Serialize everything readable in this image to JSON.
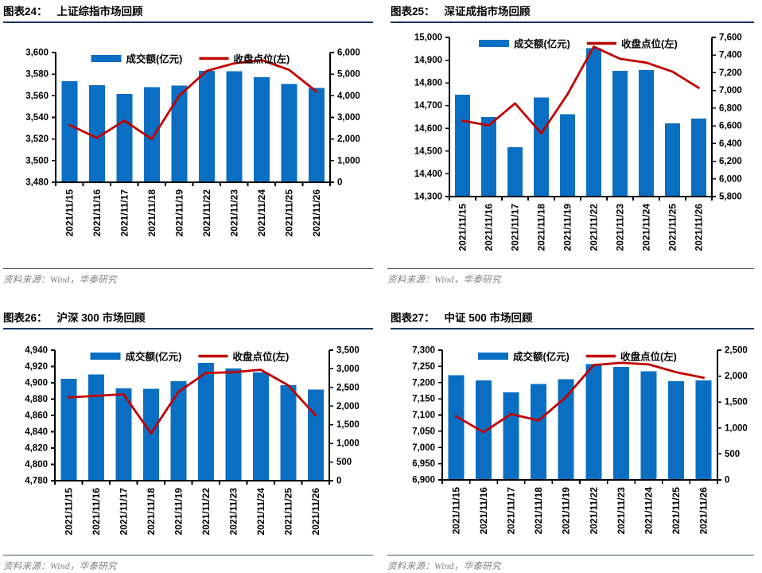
{
  "source_note": "资料来源：Wind，华泰研究",
  "colors": {
    "bar_blue": "#0A6FC2",
    "line_red": "#C00000",
    "header_rule": "#17375E",
    "footer_rule": "#44546A",
    "source_text": "#7F7F7F"
  },
  "chart_data": [
    {
      "type": "combo",
      "fig_label": "图表24：",
      "title": "上证综指市场回顾",
      "categories": [
        "2021/11/15",
        "2021/11/16",
        "2021/11/17",
        "2021/11/18",
        "2021/11/19",
        "2021/11/22",
        "2021/11/23",
        "2021/11/24",
        "2021/11/25",
        "2021/11/26"
      ],
      "series": [
        {
          "name": "成交额(亿元)",
          "type": "bar",
          "axis": "right",
          "color": "#0A6FC2",
          "values": [
            4670,
            4490,
            4080,
            4390,
            4470,
            5150,
            5130,
            4850,
            4540,
            4370
          ]
        },
        {
          "name": "收盘点位(左)",
          "type": "line",
          "axis": "left",
          "color": "#C00000",
          "values": [
            3533,
            3521,
            3537,
            3520,
            3560,
            3583,
            3590,
            3593,
            3584,
            3564
          ]
        }
      ],
      "left_axis": {
        "min": 3480,
        "max": 3600,
        "step": 20
      },
      "right_axis": {
        "min": 0,
        "max": 6000,
        "step": 1000
      },
      "legend_position": "top-center",
      "grid": false
    },
    {
      "type": "combo",
      "fig_label": "图表25：",
      "title": "深证成指市场回顾",
      "categories": [
        "2021/11/15",
        "2021/11/16",
        "2021/11/17",
        "2021/11/18",
        "2021/11/19",
        "2021/11/22",
        "2021/11/23",
        "2021/11/24",
        "2021/11/25",
        "2021/11/26"
      ],
      "series": [
        {
          "name": "成交额(亿元)",
          "type": "bar",
          "axis": "right",
          "color": "#0A6FC2",
          "values": [
            6950,
            6700,
            6360,
            6920,
            6730,
            7480,
            7220,
            7230,
            6630,
            6680
          ]
        },
        {
          "name": "收盘点位(左)",
          "type": "line",
          "axis": "left",
          "color": "#C00000",
          "values": [
            14634,
            14613,
            14710,
            14578,
            14750,
            14959,
            14906,
            14889,
            14849,
            14778
          ]
        }
      ],
      "left_axis": {
        "min": 14300,
        "max": 15000,
        "step": 100
      },
      "right_axis": {
        "min": 5800,
        "max": 7600,
        "step": 200
      },
      "legend_position": "top-center",
      "grid": false
    },
    {
      "type": "combo",
      "fig_label": "图表26：",
      "title": "沪深 300 市场回顾",
      "categories": [
        "2021/11/15",
        "2021/11/16",
        "2021/11/17",
        "2021/11/18",
        "2021/11/19",
        "2021/11/22",
        "2021/11/23",
        "2021/11/24",
        "2021/11/25",
        "2021/11/26"
      ],
      "series": [
        {
          "name": "成交额(亿元)",
          "type": "bar",
          "axis": "right",
          "color": "#0A6FC2",
          "values": [
            2730,
            2850,
            2480,
            2460,
            2670,
            3160,
            3010,
            2900,
            2560,
            2440
          ]
        },
        {
          "name": "收盘点位(左)",
          "type": "line",
          "axis": "left",
          "color": "#C00000",
          "values": [
            4882,
            4884,
            4886,
            4838,
            4889,
            4912,
            4913,
            4916,
            4897,
            4860
          ]
        }
      ],
      "left_axis": {
        "min": 4780,
        "max": 4940,
        "step": 20
      },
      "right_axis": {
        "min": 0,
        "max": 3500,
        "step": 500
      },
      "legend_position": "top-center",
      "grid": false
    },
    {
      "type": "combo",
      "fig_label": "图表27：",
      "title": "中证 500 市场回顾",
      "categories": [
        "2021/11/15",
        "2021/11/16",
        "2021/11/17",
        "2021/11/18",
        "2021/11/19",
        "2021/11/22",
        "2021/11/23",
        "2021/11/24",
        "2021/11/25",
        "2021/11/26"
      ],
      "series": [
        {
          "name": "成交额(亿元)",
          "type": "bar",
          "axis": "right",
          "color": "#0A6FC2",
          "values": [
            2020,
            1920,
            1690,
            1850,
            1940,
            2230,
            2180,
            2090,
            1900,
            1920
          ]
        },
        {
          "name": "收盘点位(左)",
          "type": "line",
          "axis": "left",
          "color": "#C00000",
          "values": [
            7096,
            7047,
            7103,
            7083,
            7156,
            7254,
            7261,
            7256,
            7232,
            7215
          ]
        }
      ],
      "left_axis": {
        "min": 6900,
        "max": 7300,
        "step": 50
      },
      "right_axis": {
        "min": 0,
        "max": 2500,
        "step": 500
      },
      "legend_position": "top-center",
      "grid": false
    }
  ]
}
